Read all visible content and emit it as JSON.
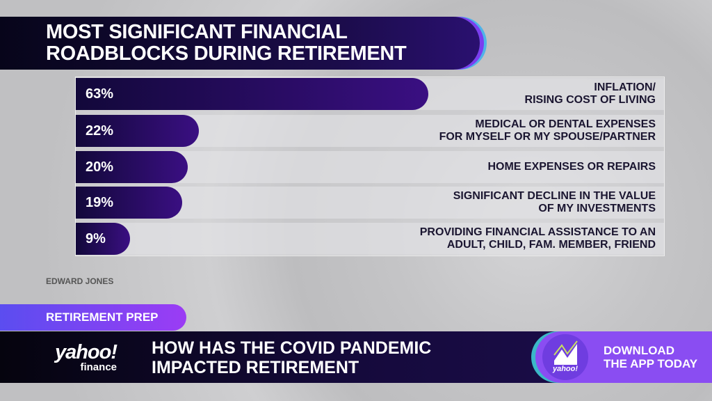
{
  "chart_data": {
    "type": "bar",
    "orientation": "horizontal",
    "title": "MOST SIGNIFICANT FINANCIAL ROADBLOCKS DURING RETIREMENT",
    "title_lines": [
      "MOST SIGNIFICANT FINANCIAL",
      "ROADBLOCKS DURING RETIREMENT"
    ],
    "categories": [
      [
        "INFLATION/",
        "RISING COST OF LIVING"
      ],
      [
        "MEDICAL OR DENTAL EXPENSES",
        "FOR MYSELF OR MY SPOUSE/PARTNER"
      ],
      [
        "HOME EXPENSES OR REPAIRS"
      ],
      [
        "SIGNIFICANT DECLINE IN THE VALUE",
        "OF MY INVESTMENTS"
      ],
      [
        "PROVIDING FINANCIAL ASSISTANCE TO AN",
        "ADULT, CHILD, FAM. MEMBER, FRIEND"
      ]
    ],
    "values": [
      63,
      22,
      20,
      19,
      9
    ],
    "value_labels": [
      "63%",
      "22%",
      "20%",
      "19%",
      "9%"
    ],
    "unit": "%",
    "bar_color": "#2a0d6a",
    "source": "EDWARD JONES"
  },
  "broadcast": {
    "tag": "RETIREMENT PREP",
    "logo": {
      "brand": "yahoo!",
      "sub": "finance"
    },
    "headline": [
      "HOW HAS THE COVID PANDEMIC",
      "IMPACTED RETIREMENT"
    ],
    "app_promo": {
      "icon_text": "yahoo!",
      "lines": [
        "DOWNLOAD",
        "THE APP TODAY"
      ]
    }
  }
}
